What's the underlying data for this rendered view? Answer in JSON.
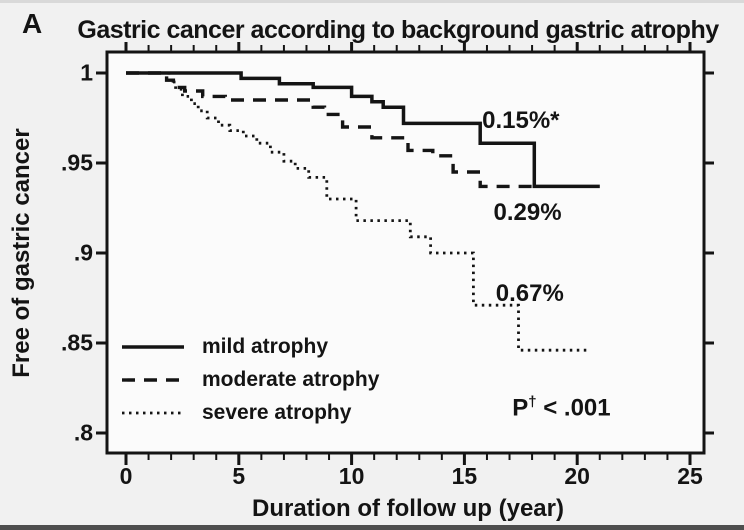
{
  "panel_label": "A",
  "title": "Gastric cancer according to background gastric atrophy",
  "axes": {
    "x_label": "Duration of follow up (year)",
    "y_label": "Free of gastric cancer",
    "x_ticks": [
      "0",
      "5",
      "10",
      "15",
      "20",
      "25"
    ],
    "y_ticks": [
      "1",
      ".95",
      ".9",
      ".85",
      ".8"
    ]
  },
  "colors": {
    "line": "#141414",
    "plot_background": "#fbfbfb",
    "page_background": "#f1f1f1"
  },
  "chart_data": {
    "type": "line",
    "subtype": "kaplan-meier-step",
    "title": "Gastric cancer according to background gastric atrophy",
    "xlabel": "Duration of follow up (year)",
    "ylabel": "Free of gastric cancer",
    "xlim": [
      0,
      25.6
    ],
    "ylim": [
      0.789,
      1.012
    ],
    "x_tick_values": [
      0,
      5,
      10,
      15,
      20,
      25
    ],
    "y_tick_values": [
      1,
      0.95,
      0.9,
      0.85,
      0.8
    ],
    "grid": false,
    "legend_position": "inside-bottom-left",
    "series": [
      {
        "name": "mild atrophy",
        "line": "solid",
        "annual_incidence_label": "0.15%*",
        "end_year": 21.0,
        "steps": [
          [
            0,
            1.0
          ],
          [
            5.1,
            0.997
          ],
          [
            6.8,
            0.994
          ],
          [
            8.3,
            0.992
          ],
          [
            10.0,
            0.987
          ],
          [
            10.9,
            0.984
          ],
          [
            11.4,
            0.981
          ],
          [
            12.3,
            0.972
          ],
          [
            15.7,
            0.961
          ],
          [
            18.1,
            0.937
          ]
        ]
      },
      {
        "name": "moderate atrophy",
        "line": "dashed",
        "annual_incidence_label": "0.29%",
        "end_year": 18.0,
        "steps": [
          [
            0,
            1.0
          ],
          [
            1.8,
            0.996
          ],
          [
            2.1,
            0.992
          ],
          [
            2.6,
            0.99
          ],
          [
            3.4,
            0.987
          ],
          [
            4.4,
            0.985
          ],
          [
            8.3,
            0.981
          ],
          [
            8.8,
            0.977
          ],
          [
            9.6,
            0.97
          ],
          [
            10.9,
            0.964
          ],
          [
            12.5,
            0.957
          ],
          [
            13.6,
            0.954
          ],
          [
            14.5,
            0.945
          ],
          [
            15.7,
            0.937
          ]
        ]
      },
      {
        "name": "severe atrophy",
        "line": "dotted",
        "annual_incidence_label": "0.67%",
        "end_year": 20.5,
        "steps": [
          [
            0,
            1.0
          ],
          [
            1.9,
            0.995
          ],
          [
            2.2,
            0.991
          ],
          [
            2.5,
            0.987
          ],
          [
            2.9,
            0.983
          ],
          [
            3.2,
            0.979
          ],
          [
            3.6,
            0.975
          ],
          [
            4.1,
            0.971
          ],
          [
            4.6,
            0.968
          ],
          [
            5.2,
            0.965
          ],
          [
            5.8,
            0.961
          ],
          [
            6.4,
            0.956
          ],
          [
            7.0,
            0.951
          ],
          [
            7.5,
            0.947
          ],
          [
            8.1,
            0.942
          ],
          [
            8.9,
            0.93
          ],
          [
            10.2,
            0.918
          ],
          [
            12.6,
            0.909
          ],
          [
            13.5,
            0.9
          ],
          [
            15.4,
            0.871
          ],
          [
            17.4,
            0.846
          ]
        ]
      }
    ],
    "annotations": [
      {
        "text": "0.15%*",
        "x_year": 17.5,
        "y_value": 0.9733
      },
      {
        "text": "0.29%",
        "x_year": 17.8,
        "y_value": 0.9225
      },
      {
        "text": "0.67%",
        "x_year": 17.9,
        "y_value": 0.877
      },
      {
        "text": "P† < .001",
        "x_year": 19.3,
        "y_value": 0.814
      }
    ]
  }
}
